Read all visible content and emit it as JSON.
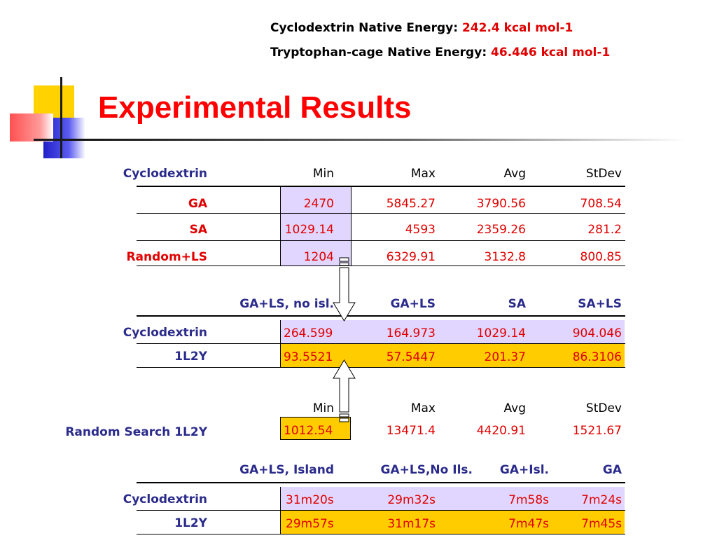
{
  "energy": {
    "cyclo_label": "Cyclodextrin Native Energy",
    "cyclo_value": "242.4 kcal mol-1",
    "trp_label": "Tryptophan-cage Native Energy",
    "trp_value": "46.446 kcal mol-1",
    "sep": ":"
  },
  "title": "Experimental Results",
  "table1": {
    "corner": "Cyclodextrin",
    "headers": [
      "Min",
      "Max",
      "Avg",
      "StDev"
    ],
    "rows": [
      {
        "label": "GA",
        "values": [
          "2470",
          "5845.27",
          "3790.56",
          "708.54"
        ]
      },
      {
        "label": "SA",
        "values": [
          "1029.14",
          "4593",
          "2359.26",
          "281.2"
        ]
      },
      {
        "label": "Random+LS",
        "values": [
          "1204",
          "6329.91",
          "3132.8",
          "800.85"
        ]
      }
    ]
  },
  "table2": {
    "headers": [
      "GA+LS, no isl.",
      "GA+LS",
      "SA",
      "SA+LS"
    ],
    "rows": [
      {
        "label": "Cyclodextrin",
        "values": [
          "264.599",
          "164.973",
          "1029.14",
          "904.046"
        ]
      },
      {
        "label": "1L2Y",
        "values": [
          "93.5521",
          "57.5447",
          "201.37",
          "86.3106"
        ]
      }
    ]
  },
  "table3": {
    "headers": [
      "Min",
      "Max",
      "Avg",
      "StDev"
    ],
    "row": {
      "label": "Random Search 1L2Y",
      "values": [
        "1012.54",
        "13471.4",
        "4420.91",
        "1521.67"
      ]
    }
  },
  "table4": {
    "headers": [
      "GA+LS, Island",
      "GA+LS,No Ils.",
      "GA+Isl.",
      "GA"
    ],
    "rows": [
      {
        "label": "Cyclodextrin",
        "values": [
          "31m20s",
          "29m32s",
          "7m58s",
          "7m24s"
        ]
      },
      {
        "label": "1L2Y",
        "values": [
          "29m57s",
          "31m17s",
          "7m47s",
          "7m45s"
        ]
      }
    ]
  },
  "colors": {
    "title": "#ff0000",
    "label": "#2b2b8c",
    "value": "#e00000",
    "lavender": "#e0d6ff",
    "gold": "#ffcc00"
  }
}
